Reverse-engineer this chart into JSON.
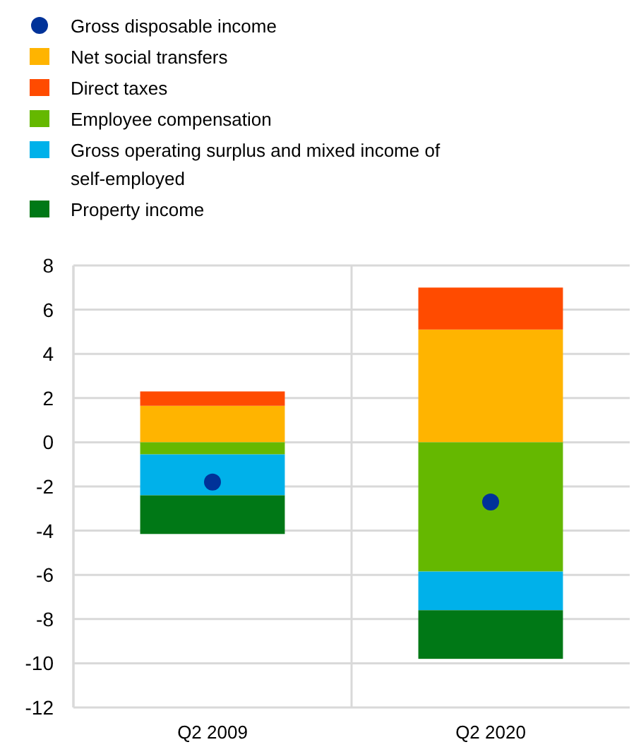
{
  "chart_data": {
    "type": "bar",
    "stacked": true,
    "categories": [
      "Q2 2009",
      "Q2 2020"
    ],
    "series": [
      {
        "name": "Gross disposable income",
        "type": "scatter",
        "color": "#003299",
        "values": [
          -1.8,
          -2.7
        ]
      },
      {
        "name": "Net social transfers",
        "color": "#ffb400",
        "values": [
          1.65,
          5.1
        ]
      },
      {
        "name": "Direct taxes",
        "color": "#ff4b00",
        "values": [
          0.65,
          1.9
        ]
      },
      {
        "name": "Employee compensation",
        "color": "#65b800",
        "values": [
          -0.55,
          -5.85
        ]
      },
      {
        "name": "Gross operating surplus and mixed income of self-employed",
        "color": "#00b1ea",
        "values": [
          -1.85,
          -1.75
        ]
      },
      {
        "name": "Property income",
        "color": "#007816",
        "values": [
          -1.75,
          -2.2
        ]
      }
    ],
    "ylim": [
      -12,
      8
    ],
    "yticks": [
      -12,
      -10,
      -8,
      -6,
      -4,
      -2,
      0,
      2,
      4,
      6,
      8
    ],
    "grid": true,
    "legend": "top",
    "marker": "circle"
  }
}
